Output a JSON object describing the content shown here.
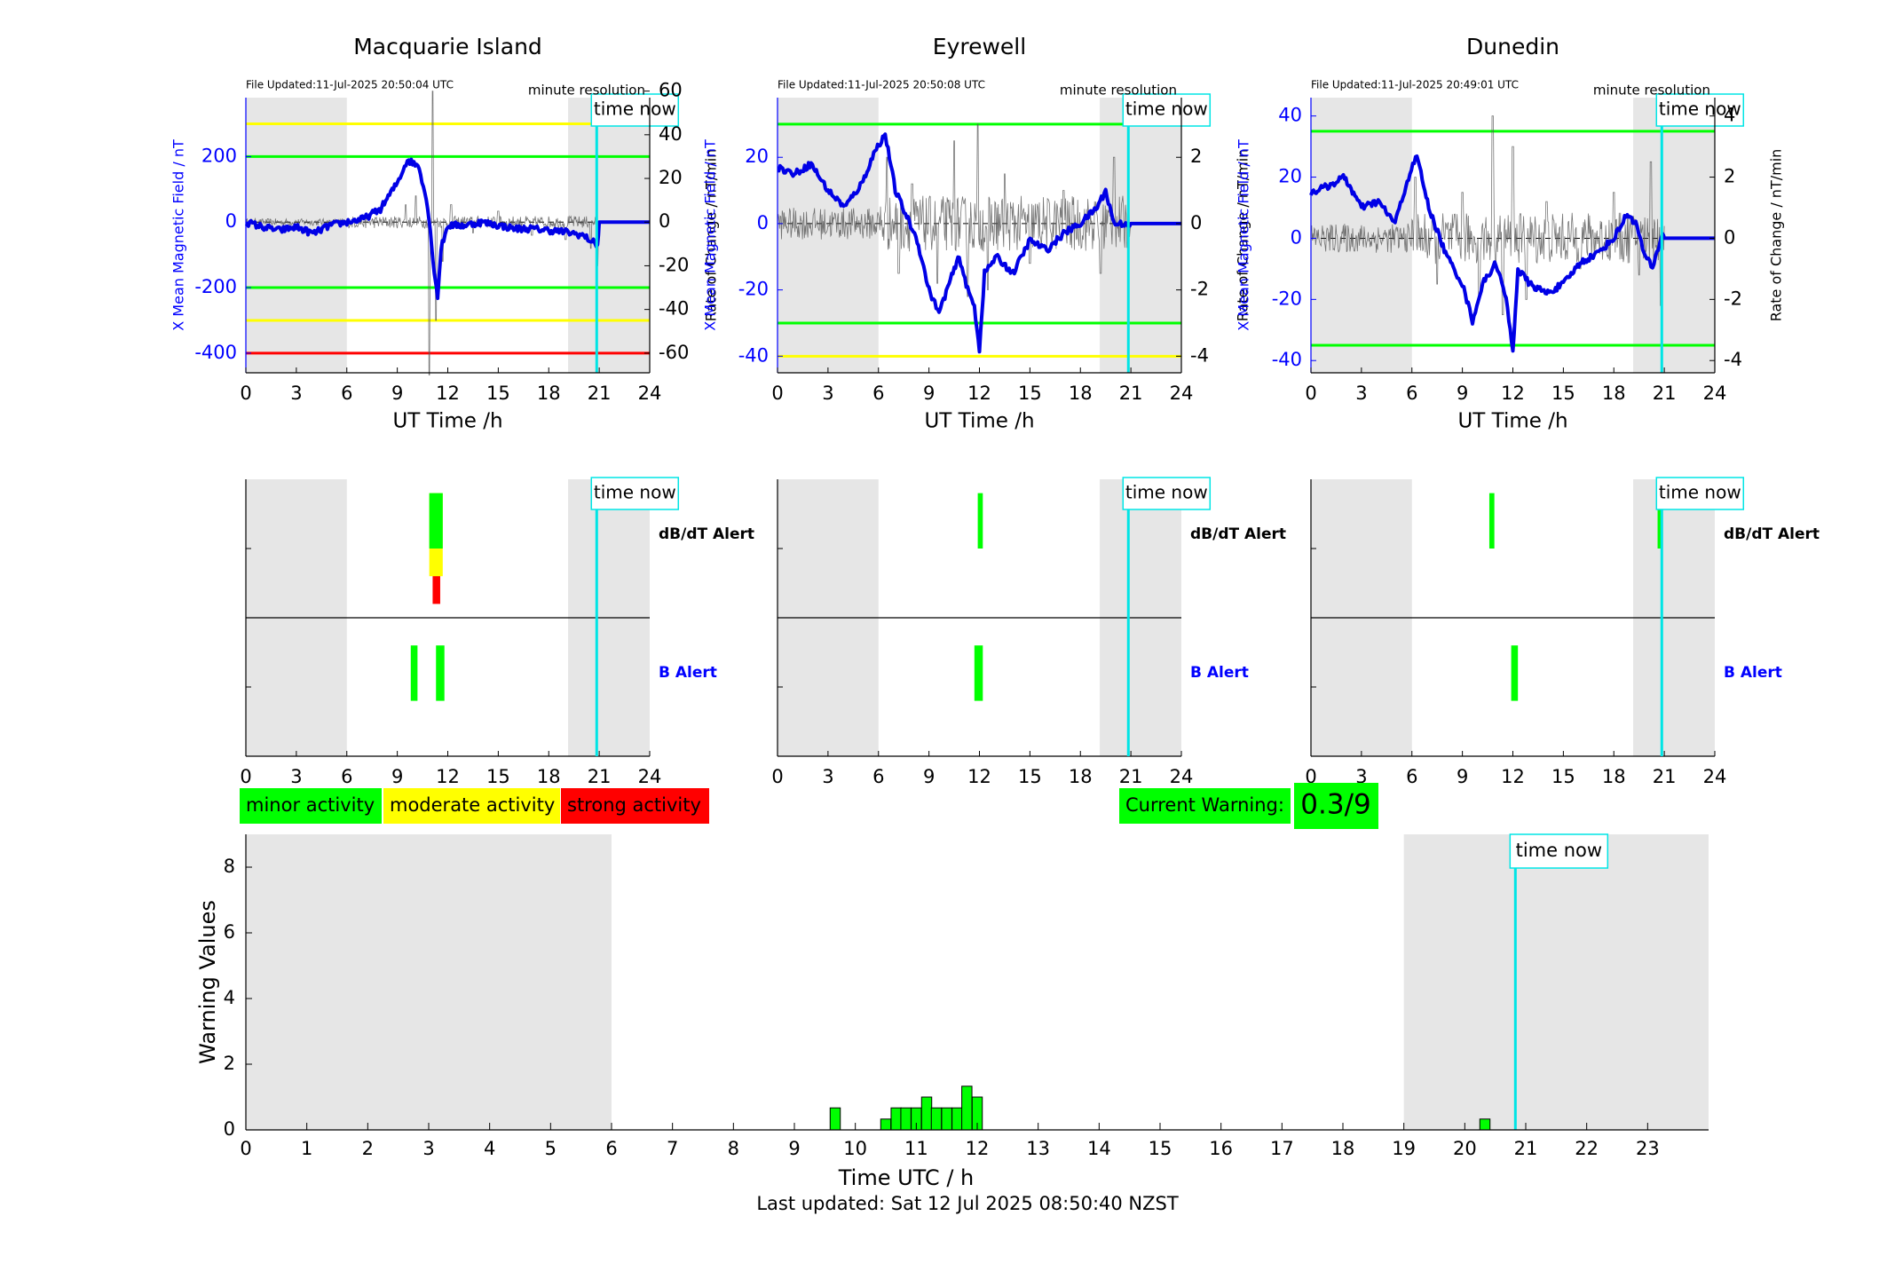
{
  "page": {
    "last_updated": "Last updated: Sat 12 Jul 2025 08:50:40 NZST",
    "time_now_label": "time now",
    "minute_resolution_label": "minute resolution",
    "xlabel_station": "UT Time /h",
    "xticks_24h": [
      "0",
      "3",
      "6",
      "9",
      "12",
      "15",
      "18",
      "21",
      "24"
    ]
  },
  "colors": {
    "shade": "#e6e6e6",
    "time_now": "#00e5e5",
    "field_line": "#0000e6",
    "rate_line": "#555555",
    "green": "#00ff00",
    "yellow": "#ffff00",
    "red": "#ff0000",
    "blue_label": "#0000ff"
  },
  "stations": [
    {
      "name": "Macquarie Island",
      "file_updated": "File Updated:11-Jul-2025 20:50:04 UTC",
      "ylabel_left": "X Mean Magnetic Field / nT",
      "ylabel_right": "Rate of Change / nT/min",
      "left_ylim": [
        -460,
        380
      ],
      "left_ticks": [
        "-400",
        "-200",
        "0",
        "200"
      ],
      "right_ylim": [
        -69,
        57
      ],
      "right_ticks": [
        "-60",
        "-40",
        "-20",
        "0",
        "20",
        "40",
        "60"
      ],
      "thresholds": [
        {
          "value": 300,
          "color": "#ffff00"
        },
        {
          "value": 200,
          "color": "#00ff00"
        },
        {
          "value": -200,
          "color": "#00ff00"
        },
        {
          "value": -300,
          "color": "#ffff00"
        },
        {
          "value": -400,
          "color": "#ff0000"
        }
      ],
      "x_mean_trace": [
        [
          0,
          0
        ],
        [
          1,
          -15
        ],
        [
          2,
          -25
        ],
        [
          3,
          -15
        ],
        [
          4,
          -35
        ],
        [
          5,
          -10
        ],
        [
          6,
          0
        ],
        [
          7,
          10
        ],
        [
          8,
          40
        ],
        [
          9,
          120
        ],
        [
          9.6,
          190
        ],
        [
          10.3,
          170
        ],
        [
          10.8,
          50
        ],
        [
          11.2,
          -150
        ],
        [
          11.4,
          -230
        ],
        [
          11.6,
          -80
        ],
        [
          12,
          -10
        ],
        [
          13,
          -10
        ],
        [
          14,
          0
        ],
        [
          15,
          -10
        ],
        [
          16,
          -20
        ],
        [
          17,
          -20
        ],
        [
          18,
          -25
        ],
        [
          19,
          -30
        ],
        [
          20,
          -40
        ],
        [
          20.9,
          -70
        ],
        [
          21,
          0
        ],
        [
          24,
          0
        ]
      ],
      "rate_spikes": [
        [
          9.5,
          8
        ],
        [
          10.1,
          12
        ],
        [
          10.9,
          -70
        ],
        [
          11.1,
          60
        ],
        [
          11.3,
          -45
        ],
        [
          11.7,
          -18
        ],
        [
          12.2,
          8
        ],
        [
          13.5,
          -5
        ],
        [
          15,
          5
        ],
        [
          17,
          -6
        ],
        [
          19,
          -8
        ],
        [
          20.5,
          -12
        ],
        [
          20.9,
          -20
        ]
      ],
      "rate_noise": 2,
      "alert_bars": {
        "dbdt": [
          [
            11.1,
            11.55,
            -0.15,
            0.45,
            "#ff0000"
          ],
          [
            10.9,
            11.7,
            -0.05,
            0.35,
            "#ffff00"
          ],
          [
            10.9,
            11.7,
            0.05,
            0.25,
            "#00ff00"
          ]
        ],
        "b": [
          [
            9.8,
            10.2,
            0.6,
            0.8,
            "#00ff00"
          ],
          [
            11.3,
            11.8,
            0.6,
            0.8,
            "#00ff00"
          ]
        ]
      },
      "dbdt_label": "dB/dT Alert",
      "b_label": "B Alert"
    },
    {
      "name": "Eyrewell",
      "file_updated": "File Updated:11-Jul-2025 20:50:08 UTC",
      "ylabel_left": "X Mean Magnetic Field / nT",
      "ylabel_right": "Rate of Change / nT/min",
      "left_ylim": [
        -45,
        38
      ],
      "left_ticks": [
        "-40",
        "-20",
        "0",
        "20"
      ],
      "right_ylim": [
        -4.5,
        3.8
      ],
      "right_ticks": [
        "-4",
        "-2",
        "0",
        "2"
      ],
      "thresholds": [
        {
          "value": 30,
          "color": "#00ff00"
        },
        {
          "value": -30,
          "color": "#00ff00"
        },
        {
          "value": -40,
          "color": "#ffff00"
        }
      ],
      "x_mean_trace": [
        [
          0,
          17
        ],
        [
          1,
          15
        ],
        [
          2,
          18
        ],
        [
          3,
          10
        ],
        [
          4,
          5
        ],
        [
          5,
          12
        ],
        [
          5.8,
          22
        ],
        [
          6.4,
          27
        ],
        [
          7,
          10
        ],
        [
          7.6,
          3
        ],
        [
          8.3,
          -5
        ],
        [
          9,
          -20
        ],
        [
          9.6,
          -27
        ],
        [
          10.2,
          -18
        ],
        [
          10.8,
          -10
        ],
        [
          11.3,
          -20
        ],
        [
          11.7,
          -25
        ],
        [
          12,
          -38
        ],
        [
          12.3,
          -15
        ],
        [
          13,
          -10
        ],
        [
          14,
          -15
        ],
        [
          15,
          -5
        ],
        [
          16,
          -8
        ],
        [
          17,
          -3
        ],
        [
          18,
          0
        ],
        [
          19,
          5
        ],
        [
          19.5,
          10
        ],
        [
          20,
          0
        ],
        [
          21,
          0
        ],
        [
          24,
          0
        ]
      ],
      "rate_spikes": [
        [
          6.5,
          2
        ],
        [
          7.2,
          -1.5
        ],
        [
          8,
          1.2
        ],
        [
          9.5,
          -1.8
        ],
        [
          10.5,
          2.5
        ],
        [
          11.3,
          -2.2
        ],
        [
          11.9,
          3
        ],
        [
          12.5,
          -2
        ],
        [
          13.5,
          1.5
        ],
        [
          15,
          -1.2
        ],
        [
          17,
          1
        ],
        [
          19.2,
          -1.5
        ],
        [
          20,
          2
        ]
      ],
      "rate_noise": 0.6,
      "alert_bars": {
        "dbdt": [
          [
            11.9,
            12.2,
            0.05,
            0.25,
            "#00ff00"
          ]
        ],
        "b": [
          [
            11.7,
            12.2,
            0.6,
            0.8,
            "#00ff00"
          ]
        ]
      },
      "dbdt_label": "dB/dT Alert",
      "b_label": "B Alert"
    },
    {
      "name": "Dunedin",
      "file_updated": "File Updated:11-Jul-2025 20:49:01 UTC",
      "ylabel_left": "X Mean Magnetic Field / nT",
      "ylabel_right": "Rate of Change / nT/min",
      "left_ylim": [
        -44,
        46
      ],
      "left_ticks": [
        "-40",
        "-20",
        "0",
        "20",
        "40"
      ],
      "right_ylim": [
        -4.4,
        4.6
      ],
      "right_ticks": [
        "-4",
        "-2",
        "0",
        "2",
        "4"
      ],
      "thresholds": [
        {
          "value": 35,
          "color": "#00ff00"
        },
        {
          "value": -35,
          "color": "#00ff00"
        }
      ],
      "x_mean_trace": [
        [
          0,
          15
        ],
        [
          1,
          17
        ],
        [
          2,
          20
        ],
        [
          3,
          10
        ],
        [
          4,
          12
        ],
        [
          5,
          5
        ],
        [
          5.8,
          20
        ],
        [
          6.3,
          27
        ],
        [
          7,
          10
        ],
        [
          8,
          -5
        ],
        [
          9,
          -15
        ],
        [
          9.6,
          -27
        ],
        [
          10.2,
          -15
        ],
        [
          11,
          -8
        ],
        [
          11.6,
          -20
        ],
        [
          12,
          -37
        ],
        [
          12.3,
          -10
        ],
        [
          13,
          -15
        ],
        [
          14,
          -18
        ],
        [
          15,
          -15
        ],
        [
          16,
          -8
        ],
        [
          17,
          -5
        ],
        [
          18,
          0
        ],
        [
          18.8,
          8
        ],
        [
          19.3,
          5
        ],
        [
          19.8,
          -5
        ],
        [
          20.3,
          -10
        ],
        [
          20.9,
          2
        ],
        [
          21,
          0
        ],
        [
          24,
          0
        ]
      ],
      "rate_spikes": [
        [
          6.2,
          2
        ],
        [
          7.5,
          -1.5
        ],
        [
          9,
          1.5
        ],
        [
          10,
          -2
        ],
        [
          10.8,
          4
        ],
        [
          11.4,
          -2.5
        ],
        [
          12,
          3
        ],
        [
          12.8,
          -2
        ],
        [
          14,
          1.2
        ],
        [
          16,
          -1
        ],
        [
          18,
          1.5
        ],
        [
          19.5,
          -1.2
        ],
        [
          20.2,
          2.5
        ],
        [
          20.8,
          -2.2
        ]
      ],
      "rate_noise": 0.6,
      "alert_bars": {
        "dbdt": [
          [
            10.6,
            10.9,
            0.05,
            0.25,
            "#00ff00"
          ],
          [
            20.6,
            20.9,
            0.05,
            0.25,
            "#00ff00"
          ]
        ],
        "b": [
          [
            11.9,
            12.3,
            0.6,
            0.8,
            "#00ff00"
          ]
        ]
      },
      "dbdt_label": "dB/dT Alert",
      "b_label": "B Alert"
    }
  ],
  "legend": [
    {
      "label": "minor activity",
      "color": "#00ff00"
    },
    {
      "label": "moderate activity",
      "color": "#ffff00"
    },
    {
      "label": "strong activity",
      "color": "#ff0000"
    }
  ],
  "current_warning": {
    "label": "Current Warning:",
    "value": "0.3/9",
    "color": "#00ff00"
  },
  "chart_data": {
    "type": "bar",
    "xlabel": "Time UTC / h",
    "ylabel": "Warning Values",
    "xlim": [
      0,
      24
    ],
    "ylim": [
      0,
      9
    ],
    "xticks": [
      "0",
      "1",
      "2",
      "3",
      "4",
      "5",
      "6",
      "7",
      "8",
      "9",
      "10",
      "11",
      "12",
      "13",
      "14",
      "15",
      "16",
      "17",
      "18",
      "19",
      "20",
      "21",
      "22",
      "23"
    ],
    "yticks": [
      "0",
      "2",
      "4",
      "6",
      "8"
    ],
    "shaded_ranges": [
      [
        0,
        6
      ],
      [
        19,
        24
      ]
    ],
    "time_now": 20.83,
    "bar_width": 0.1667,
    "bar_color": "#00ff00",
    "x": [
      9.67,
      10.5,
      10.67,
      10.83,
      11.0,
      11.17,
      11.33,
      11.5,
      11.67,
      11.83,
      12.0,
      20.33
    ],
    "values": [
      0.67,
      0.33,
      0.67,
      0.67,
      0.67,
      1.0,
      0.67,
      0.67,
      0.67,
      1.33,
      1.0,
      0.33
    ]
  }
}
